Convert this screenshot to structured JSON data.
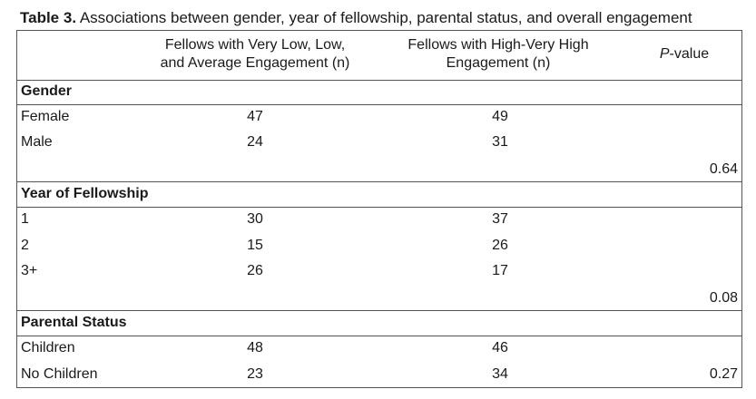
{
  "title": {
    "bold": "Table 3.",
    "text": "Associations between gender, year of fellowship, parental status, and overall engagement"
  },
  "header": {
    "col1_line1": "Fellows with Very Low, Low,",
    "col1_line2": "and Average Engagement (n)",
    "col2_line1": "Fellows with High-Very High",
    "col2_line2": "Engagement (n)",
    "col3_italic": "P",
    "col3_rest": "-value"
  },
  "sections": [
    {
      "label": "Gender",
      "rows": [
        {
          "label": "Female",
          "low": "47",
          "high": "49"
        },
        {
          "label": "Male",
          "low": "24",
          "high": "31"
        }
      ],
      "p_value": "0.64"
    },
    {
      "label": "Year of Fellowship",
      "rows": [
        {
          "label": "1",
          "low": "30",
          "high": "37"
        },
        {
          "label": "2",
          "low": "15",
          "high": "26"
        },
        {
          "label": "3+",
          "low": "26",
          "high": "17"
        }
      ],
      "p_value": "0.08"
    },
    {
      "label": "Parental Status",
      "rows": [
        {
          "label": "Children",
          "low": "48",
          "high": "46"
        },
        {
          "label": "No Children",
          "low": "23",
          "high": "34"
        }
      ],
      "p_value": "0.27"
    }
  ]
}
